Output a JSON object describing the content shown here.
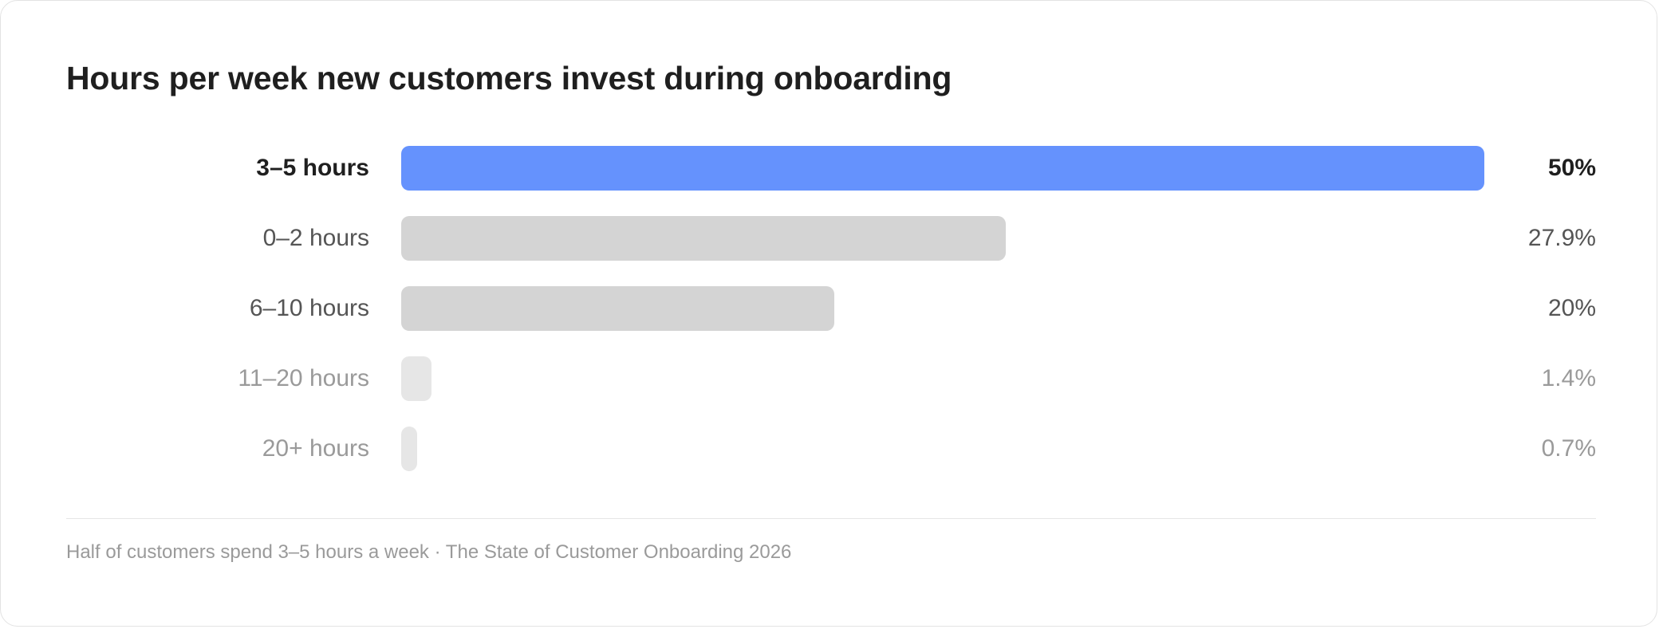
{
  "chart_data": {
    "type": "bar",
    "orientation": "horizontal",
    "title": "Hours per week new customers invest during onboarding",
    "categories": [
      "3–5 hours",
      "0–2 hours",
      "6–10 hours",
      "11–20 hours",
      "20+ hours"
    ],
    "values": [
      50,
      27.9,
      20,
      1.4,
      0.7
    ],
    "value_labels": [
      "50%",
      "27.9%",
      "20%",
      "1.4%",
      "0.7%"
    ],
    "xlim": [
      0,
      50
    ],
    "highlight_index": 0,
    "grid": false,
    "legend": "none",
    "footnote": "Half of customers spend 3–5 hours a week · The State of Customer Onboarding 2026",
    "colors": {
      "highlight_bar": "#6592fd",
      "mid_bar": "#d4d4d4",
      "faint_bar": "#e6e6e6",
      "highlight_text": "#1f1f1f",
      "mid_text": "#555555",
      "faint_text": "#9a9a9a"
    }
  }
}
